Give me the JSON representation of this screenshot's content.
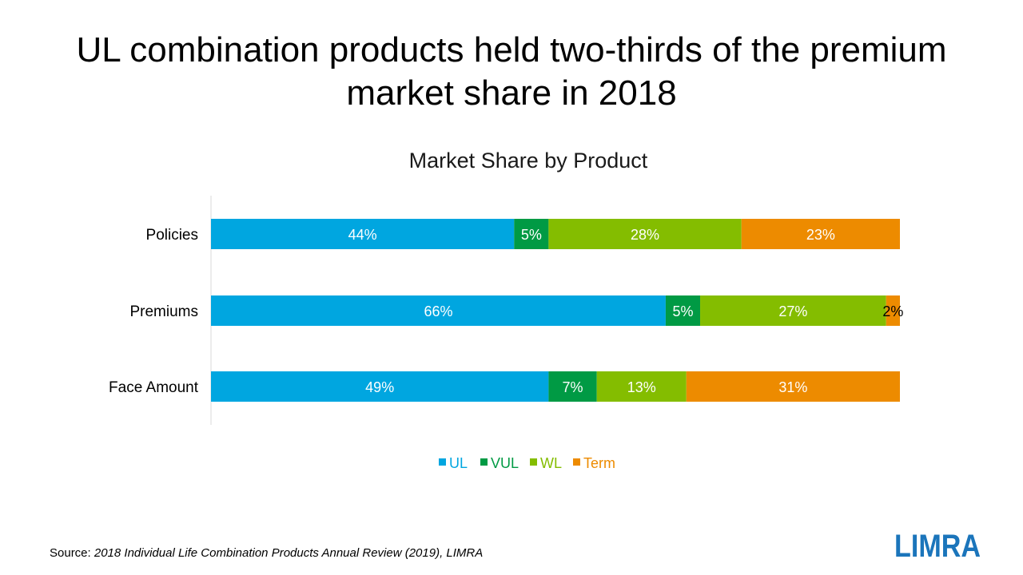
{
  "slide": {
    "title_line1": "UL combination products held two-thirds of the premium",
    "title_line2": "market share in 2018",
    "source_label": "Source:",
    "source_citation": "2018 Individual Life Combination Products Annual Review (2019), LIMRA",
    "logo_text": "LIMRA"
  },
  "chart_data": {
    "type": "bar",
    "orientation": "horizontal",
    "stacked": "percent",
    "title": "Market Share by Product",
    "categories": [
      "Policies",
      "Premiums",
      "Face Amount"
    ],
    "series": [
      {
        "name": "UL",
        "values": [
          44,
          66,
          49
        ],
        "labels": [
          "44%",
          "66%",
          "49%"
        ],
        "color": "#00A6E0"
      },
      {
        "name": "VUL",
        "values": [
          5,
          5,
          7
        ],
        "labels": [
          "5%",
          "5%",
          "7%"
        ],
        "color": "#009A44"
      },
      {
        "name": "WL",
        "values": [
          28,
          27,
          13
        ],
        "labels": [
          "28%",
          "27%",
          "13%"
        ],
        "color": "#84BD00"
      },
      {
        "name": "Term",
        "values": [
          23,
          2,
          31
        ],
        "labels": [
          "23%",
          "2%",
          "31%"
        ],
        "color": "#ED8B00"
      }
    ],
    "xlim": [
      0,
      100
    ],
    "grid": false,
    "legend": "bottom"
  }
}
